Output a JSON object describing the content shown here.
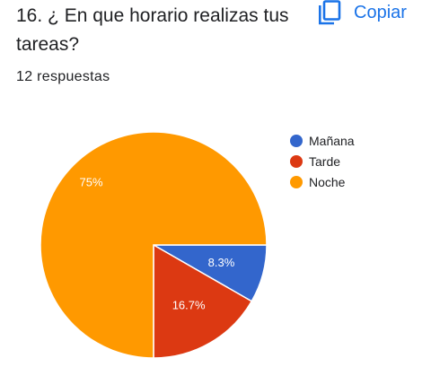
{
  "question": {
    "title": "16. ¿ En que horario realizas tus tareas?",
    "response_count": "12 respuestas"
  },
  "toolbar": {
    "copy_label": "Copiar",
    "copy_icon": "copy-icon",
    "accent": "#1a73e8"
  },
  "chart_data": {
    "type": "pie",
    "categories": [
      "Mañana",
      "Tarde",
      "Noche"
    ],
    "values": [
      8.3,
      16.7,
      75
    ],
    "value_labels": [
      "8.3%",
      "16.7%",
      "75%"
    ],
    "colors": [
      "#3366cc",
      "#dc3912",
      "#ff9900"
    ],
    "legend_position": "right",
    "title": "",
    "legend": [
      "Mañana",
      "Tarde",
      "Noche"
    ]
  }
}
